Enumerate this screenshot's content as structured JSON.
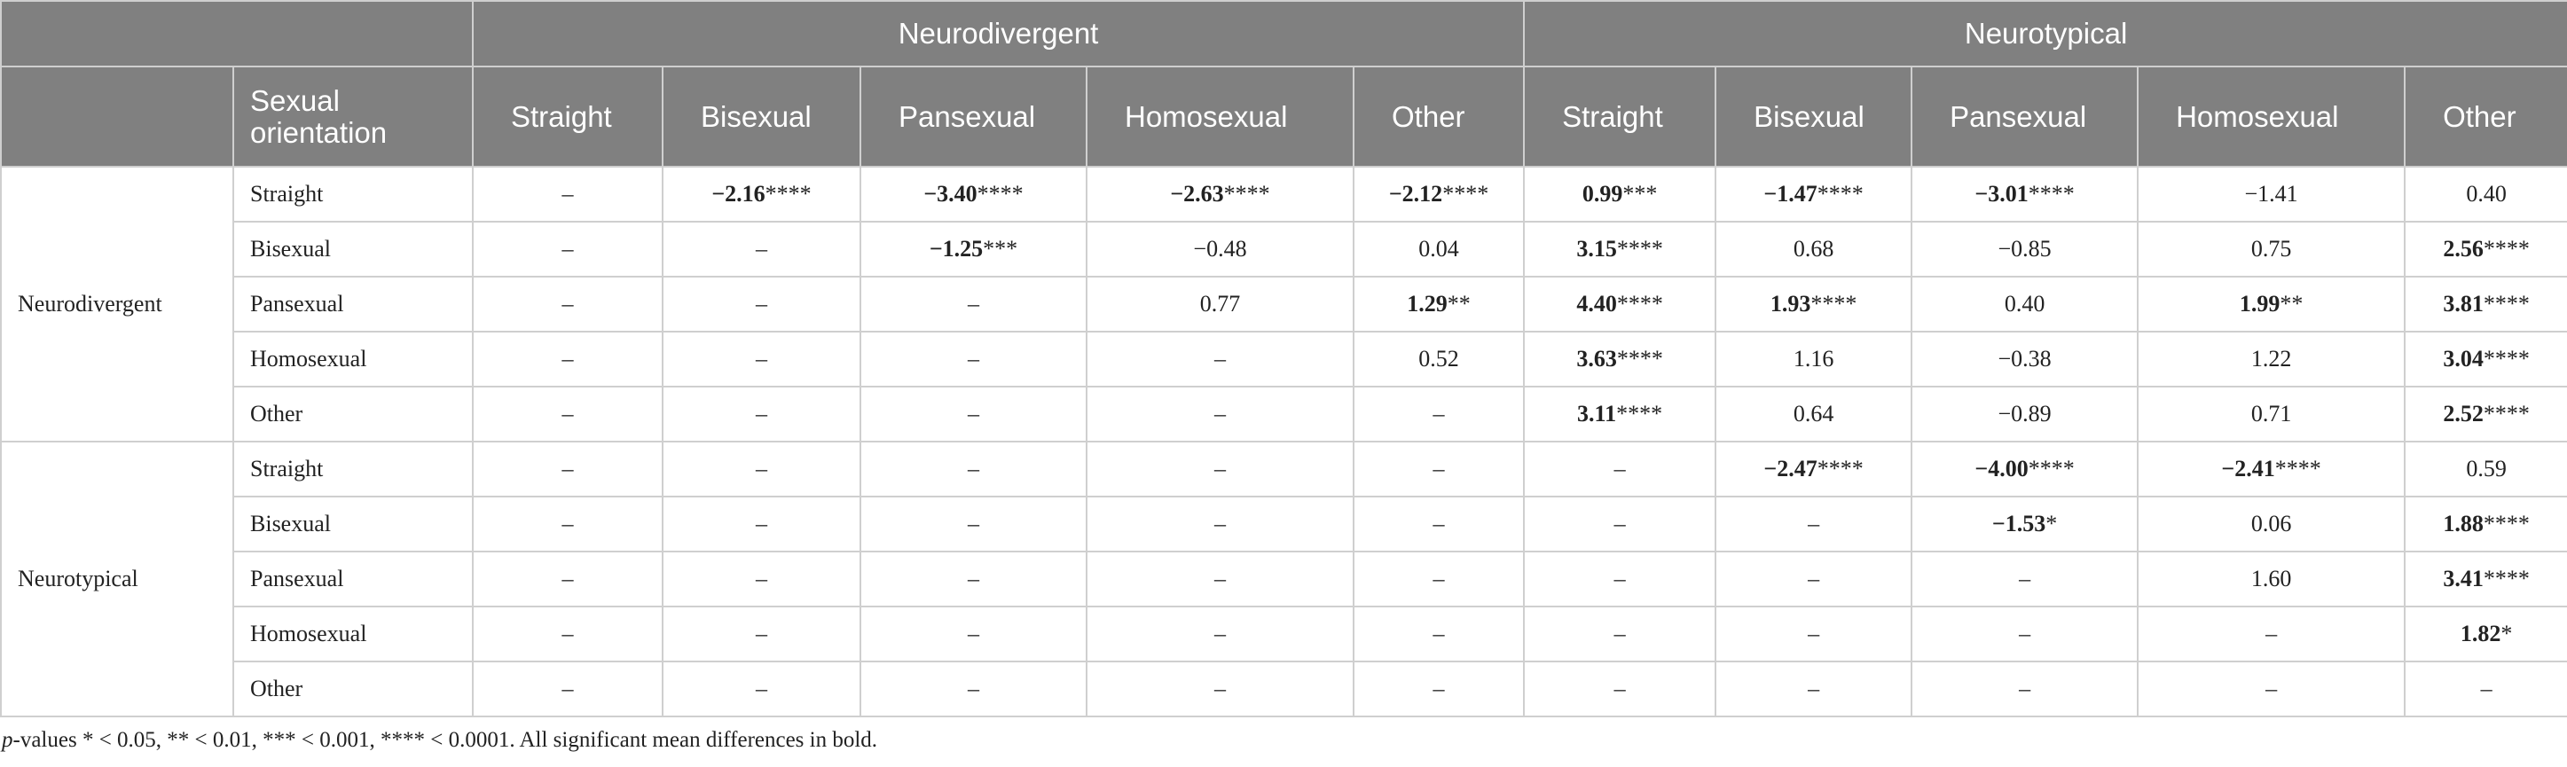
{
  "header": {
    "groups": [
      "Neurodivergent",
      "Neurotypical"
    ],
    "row_label": "Sexual orientation",
    "columns": [
      "Straight",
      "Bisexual",
      "Pansexual",
      "Homosexual",
      "Other",
      "Straight",
      "Bisexual",
      "Pansexual",
      "Homosexual",
      "Other"
    ]
  },
  "table": {
    "groups": [
      {
        "name": "Neurodivergent",
        "rows": [
          {
            "label": "Straight",
            "cells": [
              "–",
              {
                "v": "−2.16",
                "sig": "****"
              },
              {
                "v": "−3.40",
                "sig": "****"
              },
              {
                "v": "−2.63",
                "sig": "****"
              },
              {
                "v": "−2.12",
                "sig": "****"
              },
              {
                "v": "0.99",
                "sig": "***"
              },
              {
                "v": "−1.47",
                "sig": "****"
              },
              {
                "v": "−3.01",
                "sig": "****"
              },
              "−1.41",
              "0.40"
            ]
          },
          {
            "label": "Bisexual",
            "cells": [
              "–",
              "–",
              {
                "v": "−1.25",
                "sig": "***"
              },
              "−0.48",
              "0.04",
              {
                "v": "3.15",
                "sig": "****"
              },
              "0.68",
              "−0.85",
              "0.75",
              {
                "v": "2.56",
                "sig": "****"
              }
            ]
          },
          {
            "label": "Pansexual",
            "cells": [
              "–",
              "–",
              "–",
              "0.77",
              {
                "v": "1.29",
                "sig": "**"
              },
              {
                "v": "4.40",
                "sig": "****"
              },
              {
                "v": "1.93",
                "sig": "****"
              },
              "0.40",
              {
                "v": "1.99",
                "sig": "**"
              },
              {
                "v": "3.81",
                "sig": "****"
              }
            ]
          },
          {
            "label": "Homosexual",
            "cells": [
              "–",
              "–",
              "–",
              "–",
              "0.52",
              {
                "v": "3.63",
                "sig": "****"
              },
              "1.16",
              "−0.38",
              "1.22",
              {
                "v": "3.04",
                "sig": "****"
              }
            ]
          },
          {
            "label": "Other",
            "cells": [
              "–",
              "–",
              "–",
              "–",
              "–",
              {
                "v": "3.11",
                "sig": "****"
              },
              "0.64",
              "−0.89",
              "0.71",
              {
                "v": "2.52",
                "sig": "****"
              }
            ]
          }
        ]
      },
      {
        "name": "Neurotypical",
        "rows": [
          {
            "label": "Straight",
            "cells": [
              "–",
              "–",
              "–",
              "–",
              "–",
              "–",
              {
                "v": "−2.47",
                "sig": "****"
              },
              {
                "v": "−4.00",
                "sig": "****"
              },
              {
                "v": "−2.41",
                "sig": "****"
              },
              "0.59"
            ]
          },
          {
            "label": "Bisexual",
            "cells": [
              "–",
              "–",
              "–",
              "–",
              "–",
              "–",
              "–",
              {
                "v": "−1.53",
                "sig": "*"
              },
              "0.06",
              {
                "v": "1.88",
                "sig": "****"
              }
            ]
          },
          {
            "label": "Pansexual",
            "cells": [
              "–",
              "–",
              "–",
              "–",
              "–",
              "–",
              "–",
              "–",
              "1.60",
              {
                "v": "3.41",
                "sig": "****"
              }
            ]
          },
          {
            "label": "Homosexual",
            "cells": [
              "–",
              "–",
              "–",
              "–",
              "–",
              "–",
              "–",
              "–",
              "–",
              {
                "v": "1.82",
                "sig": "*"
              }
            ]
          },
          {
            "label": "Other",
            "cells": [
              "–",
              "–",
              "–",
              "–",
              "–",
              "–",
              "–",
              "–",
              "–",
              "–"
            ]
          }
        ]
      }
    ]
  },
  "footnote": {
    "italic": "p",
    "text": "-values * < 0.05, ** < 0.01, *** < 0.001, **** < 0.0001. All significant mean differences in bold."
  }
}
